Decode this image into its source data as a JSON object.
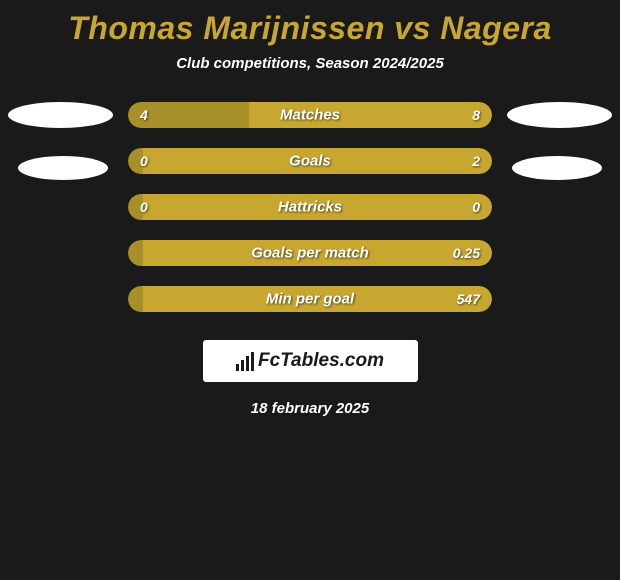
{
  "title": "Thomas Marijnissen vs Nagera",
  "subtitle": "Club competitions, Season 2024/2025",
  "colors": {
    "background": "#1a1a1a",
    "title": "#c8a730",
    "text": "#ffffff",
    "bar_left": "#a89028",
    "bar_right": "#c8a730",
    "avatar": "#ffffff"
  },
  "stats": [
    {
      "label": "Matches",
      "left_value": "4",
      "right_value": "8",
      "left_pct": 33.3
    },
    {
      "label": "Goals",
      "left_value": "0",
      "right_value": "2",
      "left_pct": 4
    },
    {
      "label": "Hattricks",
      "left_value": "0",
      "right_value": "0",
      "left_pct": 4
    },
    {
      "label": "Goals per match",
      "left_value": "",
      "right_value": "0.25",
      "left_pct": 4
    },
    {
      "label": "Min per goal",
      "left_value": "",
      "right_value": "547",
      "left_pct": 4
    }
  ],
  "footer": {
    "logo_text": "FcTables.com",
    "date": "18 february 2025"
  }
}
